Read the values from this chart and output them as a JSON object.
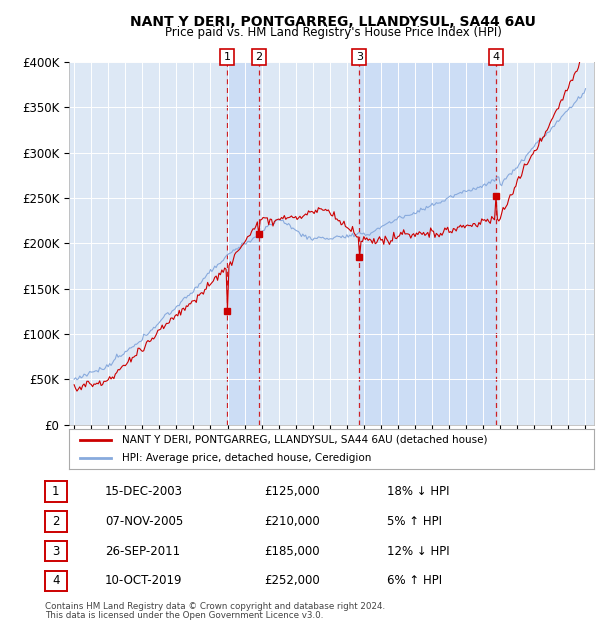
{
  "title1": "NANT Y DERI, PONTGARREG, LLANDYSUL, SA44 6AU",
  "title2": "Price paid vs. HM Land Registry's House Price Index (HPI)",
  "ylim": [
    0,
    400000
  ],
  "yticks": [
    0,
    50000,
    100000,
    150000,
    200000,
    250000,
    300000,
    350000,
    400000
  ],
  "ytick_labels": [
    "£0",
    "£50K",
    "£100K",
    "£150K",
    "£200K",
    "£250K",
    "£300K",
    "£350K",
    "£400K"
  ],
  "hpi_color": "#88aadd",
  "price_color": "#cc0000",
  "background_color": "#ffffff",
  "plot_bg_color": "#dde8f5",
  "grid_color": "#ffffff",
  "shade_color": "#ccddf5",
  "transactions": [
    {
      "num": 1,
      "date_decimal": 2003.96,
      "date_str": "15-DEC-2003",
      "price": 125000,
      "pct": "18%",
      "dir": "↓"
    },
    {
      "num": 2,
      "date_decimal": 2005.85,
      "date_str": "07-NOV-2005",
      "price": 210000,
      "pct": "5%",
      "dir": "↑"
    },
    {
      "num": 3,
      "date_decimal": 2011.73,
      "date_str": "26-SEP-2011",
      "price": 185000,
      "pct": "12%",
      "dir": "↓"
    },
    {
      "num": 4,
      "date_decimal": 2019.77,
      "date_str": "10-OCT-2019",
      "price": 252000,
      "pct": "6%",
      "dir": "↑"
    }
  ],
  "legend_price_label": "NANT Y DERI, PONTGARREG, LLANDYSUL, SA44 6AU (detached house)",
  "legend_hpi_label": "HPI: Average price, detached house, Ceredigion",
  "footer1": "Contains HM Land Registry data © Crown copyright and database right 2024.",
  "footer2": "This data is licensed under the Open Government Licence v3.0.",
  "xmin": 1994.7,
  "xmax": 2025.5
}
